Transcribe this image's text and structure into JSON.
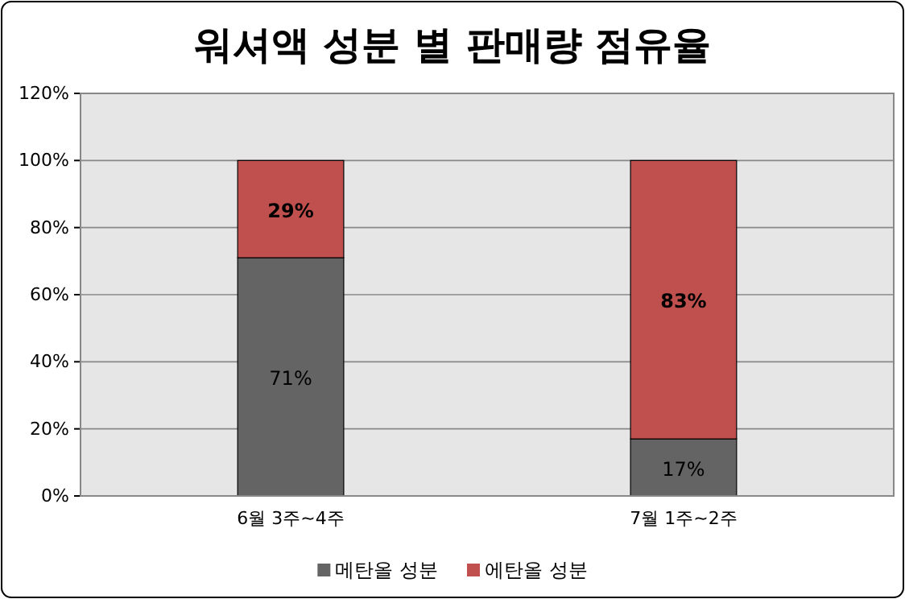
{
  "chart_data": {
    "type": "bar",
    "title": "워셔액 성분 별 판매량 점유율",
    "stacked": true,
    "categories": [
      "6월 3주~4주",
      "7월 1주~2주"
    ],
    "series": [
      {
        "name": "메탄올 성분",
        "color": "#646464",
        "values": [
          71,
          17
        ],
        "value_labels": [
          "71%",
          "17%"
        ]
      },
      {
        "name": "에탄올 성분",
        "color": "#c0504d",
        "values": [
          29,
          83
        ],
        "value_labels": [
          "29%",
          "83%"
        ]
      }
    ],
    "ylim": [
      0,
      120
    ],
    "yticks": [
      {
        "value": 0,
        "label": "0%"
      },
      {
        "value": 20,
        "label": "20%"
      },
      {
        "value": 40,
        "label": "40%"
      },
      {
        "value": 60,
        "label": "60%"
      },
      {
        "value": 80,
        "label": "80%"
      },
      {
        "value": 100,
        "label": "100%"
      },
      {
        "value": 120,
        "label": "120%"
      }
    ],
    "grid": "y",
    "legend": "bottom"
  }
}
